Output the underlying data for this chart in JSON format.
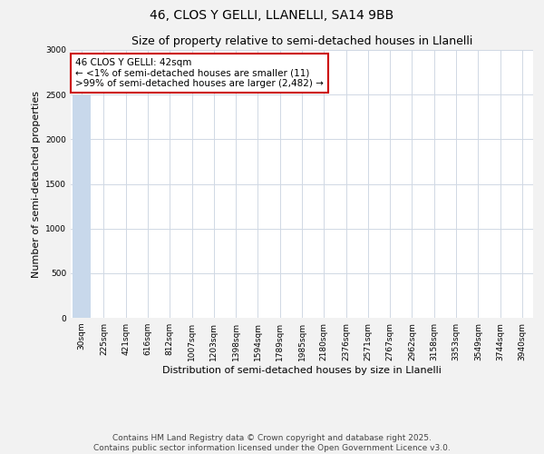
{
  "title": "46, CLOS Y GELLI, LLANELLI, SA14 9BB",
  "subtitle": "Size of property relative to semi-detached houses in Llanelli",
  "xlabel": "Distribution of semi-detached houses by size in Llanelli",
  "ylabel": "Number of semi-detached properties",
  "bins": [
    "30sqm",
    "225sqm",
    "421sqm",
    "616sqm",
    "812sqm",
    "1007sqm",
    "1203sqm",
    "1398sqm",
    "1594sqm",
    "1789sqm",
    "1985sqm",
    "2180sqm",
    "2376sqm",
    "2571sqm",
    "2767sqm",
    "2962sqm",
    "3158sqm",
    "3353sqm",
    "3549sqm",
    "3744sqm",
    "3940sqm"
  ],
  "values": [
    2493,
    0,
    0,
    0,
    0,
    0,
    0,
    0,
    0,
    0,
    0,
    0,
    0,
    0,
    0,
    0,
    0,
    0,
    0,
    0,
    0
  ],
  "bar_color": "#c8d8eb",
  "ylim": [
    0,
    3000
  ],
  "yticks": [
    0,
    500,
    1000,
    1500,
    2000,
    2500,
    3000
  ],
  "annotation_title": "46 CLOS Y GELLI: 42sqm",
  "annotation_line1": "← <1% of semi-detached houses are smaller (11)",
  "annotation_line2": ">99% of semi-detached houses are larger (2,482) →",
  "footer_line1": "Contains HM Land Registry data © Crown copyright and database right 2025.",
  "footer_line2": "Contains public sector information licensed under the Open Government Licence v3.0.",
  "bg_color": "#f2f2f2",
  "plot_bg_color": "#ffffff",
  "grid_color": "#d0d8e4",
  "annotation_box_color": "#cc0000",
  "title_fontsize": 10,
  "subtitle_fontsize": 9,
  "axis_label_fontsize": 8,
  "tick_fontsize": 6.5,
  "annotation_fontsize": 7.5,
  "footer_fontsize": 6.5
}
